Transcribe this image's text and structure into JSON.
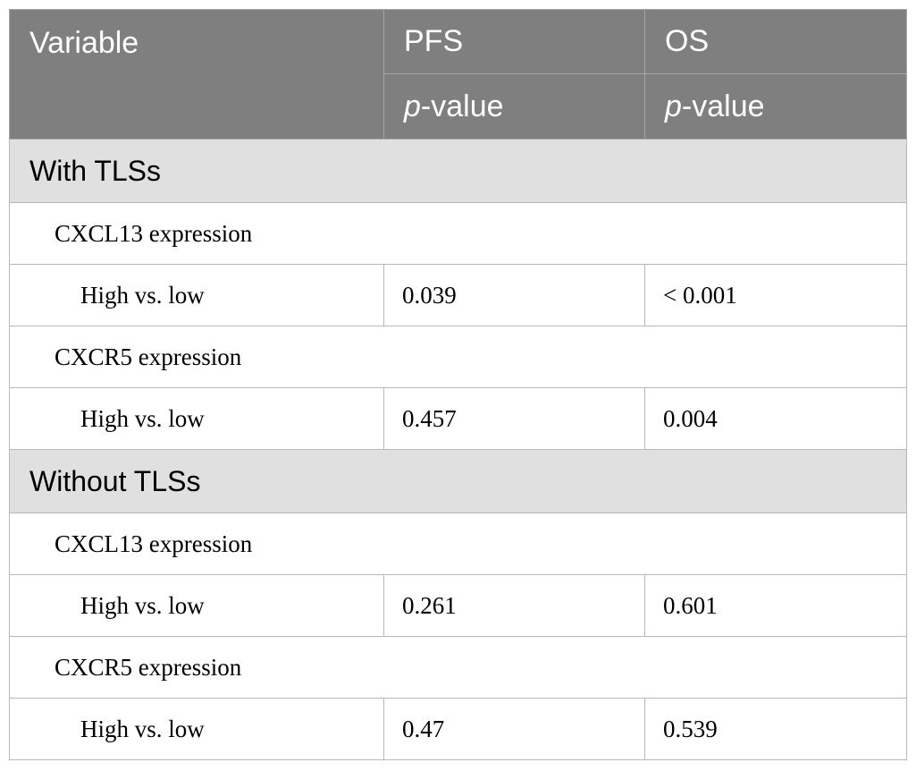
{
  "header": {
    "variable": "Variable",
    "pfs": "PFS",
    "os": "OS",
    "p_italic": "p",
    "p_suffix": "-value"
  },
  "groups": [
    {
      "title": "With TLSs",
      "blocks": [
        {
          "label": "CXCL13 expression",
          "row": {
            "label": "High vs. low",
            "pfs": "0.039",
            "os": "< 0.001"
          }
        },
        {
          "label": "CXCR5 expression",
          "row": {
            "label": "High vs. low",
            "pfs": "0.457",
            "os": "0.004"
          }
        }
      ]
    },
    {
      "title": "Without TLSs",
      "blocks": [
        {
          "label": "CXCL13 expression",
          "row": {
            "label": "High vs. low",
            "pfs": "0.261",
            "os": "0.601"
          }
        },
        {
          "label": "CXCR5 expression",
          "row": {
            "label": "High vs. low",
            "pfs": "0.47",
            "os": "0.539"
          }
        }
      ]
    }
  ]
}
